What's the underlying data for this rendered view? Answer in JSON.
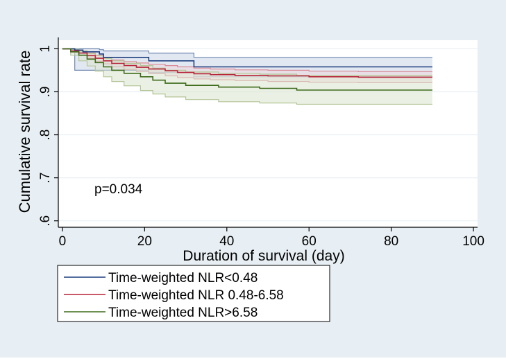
{
  "chart_data": {
    "type": "line",
    "subtype": "kaplan-meier-step",
    "xlabel": "Duration of survival (day)",
    "ylabel": "Cumulative survival rate",
    "xlim": [
      -1,
      101
    ],
    "ylim": [
      0.585,
      1.02
    ],
    "xticks": [
      0,
      20,
      40,
      60,
      80,
      100
    ],
    "xtick_labels": [
      "0",
      "20",
      "40",
      "60",
      "80",
      "100"
    ],
    "yticks": [
      1.0,
      0.9,
      0.8,
      0.7,
      0.6
    ],
    "ytick_labels": [
      "1",
      ".9",
      ".8",
      ".7",
      ".6"
    ],
    "grid": "horizontal",
    "annotation": "p=0.034",
    "legend_position": "bottom",
    "colors": {
      "background": "#e8eff4",
      "plot": "#ffffff",
      "grid": "#e8eff4",
      "axis": "#000000",
      "ci_border": "#c8cfd6",
      "ci_edge": "#c8d4a8"
    },
    "series": [
      {
        "name": "Time-weighted NLR<0.48",
        "color": "#1f3f7f",
        "ci_fill": "#cad6e8",
        "ci_edge": "#6f88b0",
        "x": [
          0,
          3,
          5,
          9,
          10,
          21,
          32,
          90
        ],
        "y": [
          1.0,
          0.997,
          0.993,
          0.988,
          0.98,
          0.972,
          0.958,
          0.958
        ],
        "ci_lower": [
          1.0,
          0.95,
          0.95,
          0.95,
          0.95,
          0.945,
          0.935,
          0.935
        ],
        "ci_upper": [
          1.0,
          1.0,
          1.0,
          0.998,
          0.995,
          0.99,
          0.98,
          0.98
        ]
      },
      {
        "name": "Time-weighted NLR 0.48-6.58",
        "color": "#b8243a",
        "ci_fill": "#ecd6da",
        "ci_edge": "#d98a95",
        "x": [
          0,
          2,
          4,
          6,
          8,
          10,
          12,
          15,
          18,
          21,
          25,
          28,
          32,
          36,
          42,
          50,
          60,
          72,
          90
        ],
        "y": [
          1.0,
          0.995,
          0.99,
          0.984,
          0.978,
          0.972,
          0.966,
          0.961,
          0.957,
          0.953,
          0.949,
          0.945,
          0.942,
          0.94,
          0.938,
          0.937,
          0.935,
          0.934,
          0.934
        ],
        "ci_lower": [
          1.0,
          0.992,
          0.985,
          0.978,
          0.971,
          0.965,
          0.958,
          0.952,
          0.947,
          0.942,
          0.937,
          0.933,
          0.93,
          0.928,
          0.926,
          0.924,
          0.922,
          0.921,
          0.921
        ],
        "ci_upper": [
          1.0,
          0.998,
          0.995,
          0.99,
          0.985,
          0.979,
          0.974,
          0.97,
          0.967,
          0.964,
          0.961,
          0.958,
          0.955,
          0.953,
          0.951,
          0.95,
          0.948,
          0.947,
          0.947
        ]
      },
      {
        "name": "Time-weighted NLR>6.58",
        "color": "#3d6b1a",
        "ci_fill": "#dbe3cf",
        "ci_edge": "#b4c596",
        "x": [
          0,
          2,
          4,
          6,
          8,
          10,
          12,
          15,
          19,
          22,
          25,
          30,
          38,
          48,
          57,
          90
        ],
        "y": [
          1.0,
          0.993,
          0.985,
          0.976,
          0.968,
          0.958,
          0.95,
          0.943,
          0.935,
          0.927,
          0.92,
          0.915,
          0.911,
          0.908,
          0.904,
          0.904
        ],
        "ci_lower": [
          1.0,
          0.985,
          0.972,
          0.96,
          0.948,
          0.935,
          0.924,
          0.914,
          0.903,
          0.895,
          0.888,
          0.882,
          0.877,
          0.874,
          0.871,
          0.871
        ],
        "ci_upper": [
          1.0,
          0.999,
          0.995,
          0.989,
          0.984,
          0.978,
          0.972,
          0.966,
          0.961,
          0.955,
          0.95,
          0.946,
          0.943,
          0.941,
          0.938,
          0.938
        ]
      }
    ]
  }
}
